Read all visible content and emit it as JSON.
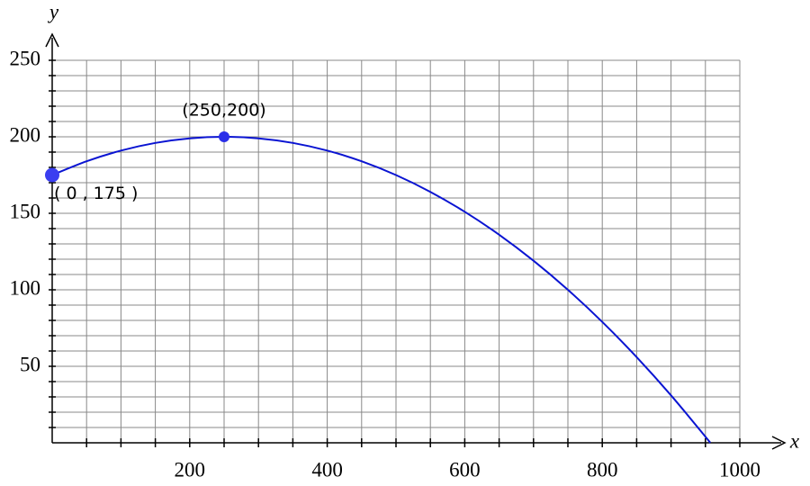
{
  "chart_data": {
    "type": "line",
    "x_label": "x",
    "y_label": "y",
    "x": [
      0,
      50,
      100,
      150,
      200,
      250,
      300,
      350,
      400,
      450,
      500,
      550,
      600,
      650,
      700,
      750,
      800,
      850,
      900,
      950,
      957
    ],
    "series": [
      {
        "color": "#0a14d2",
        "values": [
          175,
          184,
          191,
          196,
          199,
          200,
          199,
          196,
          191,
          184,
          175,
          164,
          151,
          136,
          119,
          100,
          79,
          56,
          31,
          4,
          0
        ]
      }
    ],
    "points": [
      {
        "x": 0,
        "y": 175,
        "label": "( 0 , 175 )",
        "color": "#3a3ef0"
      },
      {
        "x": 250,
        "y": 200,
        "label": "(250,200)",
        "color": "#2a2ee8"
      }
    ],
    "xlim": [
      0,
      1000
    ],
    "ylim": [
      0,
      250
    ],
    "xticks": [
      200,
      400,
      600,
      800,
      1000
    ],
    "yticks": [
      50,
      100,
      150,
      200,
      250
    ],
    "xminorticks": [
      50,
      100,
      150,
      200,
      250,
      300,
      350,
      400,
      450,
      500,
      550,
      600,
      650,
      700,
      750,
      800,
      850,
      900,
      950,
      1000
    ],
    "yminorticks": [
      10,
      20,
      30,
      40,
      50,
      60,
      70,
      80,
      90,
      100,
      110,
      120,
      130,
      140,
      150,
      160,
      170,
      180,
      190,
      200,
      210,
      220,
      230,
      240,
      250
    ],
    "grid": true
  }
}
